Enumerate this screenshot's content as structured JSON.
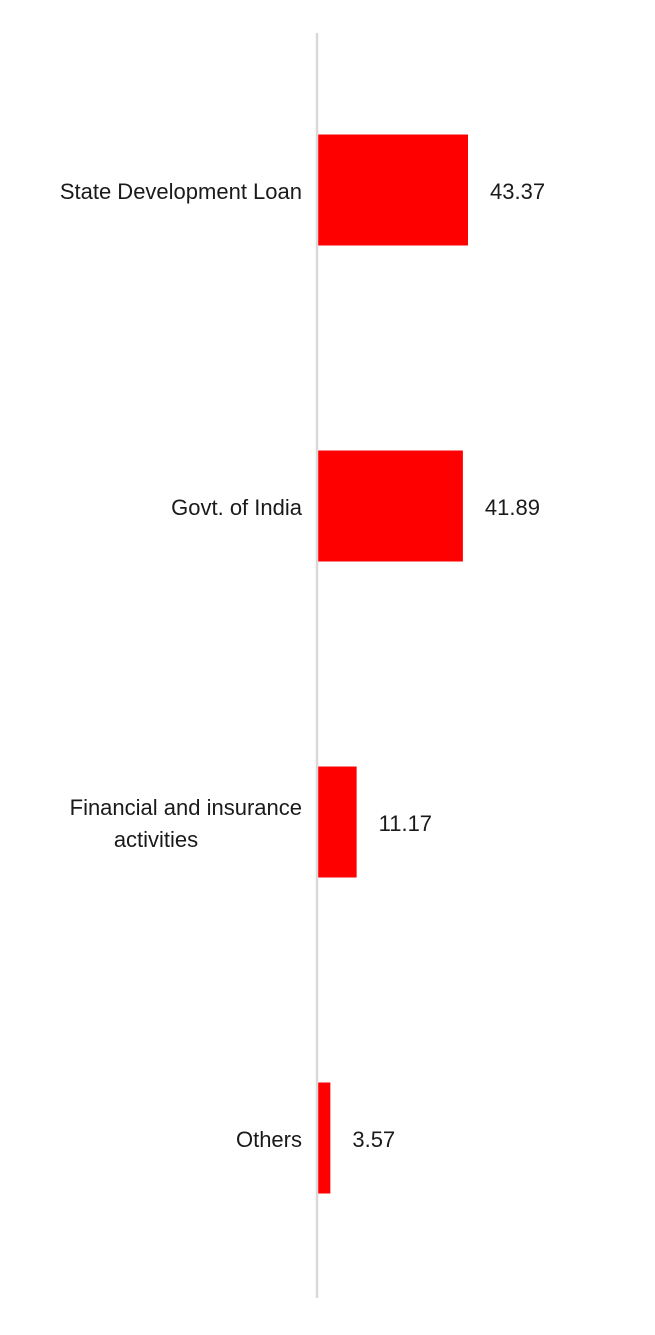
{
  "chart_data": {
    "type": "bar",
    "orientation": "horizontal",
    "categories": [
      [
        "State Development Loan"
      ],
      [
        "Govt. of India"
      ],
      [
        "Financial and insurance",
        "activities"
      ],
      [
        "Others"
      ]
    ],
    "values": [
      43.37,
      41.89,
      11.17,
      3.57
    ],
    "value_labels": [
      "43.37",
      "41.89",
      "11.17",
      "3.57"
    ],
    "bar_color": "#ff0000",
    "axis_color": "#d9d9d9",
    "gridlines": false,
    "legend": "none",
    "title": "",
    "xlabel": "",
    "ylabel": ""
  }
}
